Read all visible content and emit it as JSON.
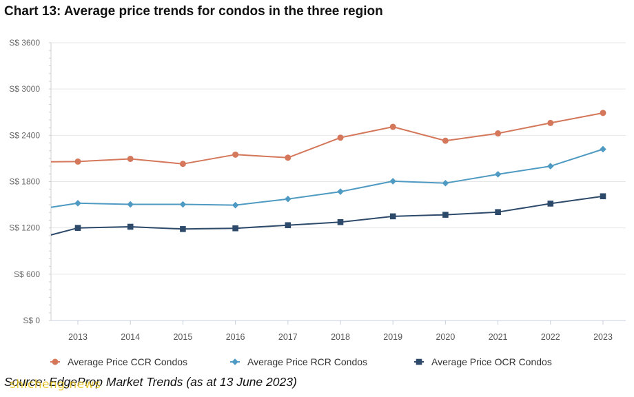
{
  "header": {
    "title": "Chart 13: Average price trends for condos in the three region"
  },
  "footer": {
    "source": "Source: EdgeProp Market Trends (as at 13 June 2023)",
    "watermark": "shicheng.news"
  },
  "chart_data": {
    "type": "line",
    "title": "Chart 13: Average price trends for condos in the three region",
    "xlabel": "",
    "ylabel": "",
    "categories": [
      "2013",
      "2014",
      "2015",
      "2016",
      "2017",
      "2018",
      "2019",
      "2020",
      "2021",
      "2022",
      "2023"
    ],
    "yticks": [
      "S$ 0",
      "S$ 600",
      "S$ 1200",
      "S$ 1800",
      "S$ 2400",
      "S$ 3000",
      "S$ 3600"
    ],
    "ylim": [
      0,
      3600
    ],
    "grid": true,
    "legend_position": "bottom",
    "series": [
      {
        "name": "Average Price CCR Condos",
        "color": "#d4775a",
        "marker": "circle",
        "values": [
          2060,
          2095,
          2030,
          2150,
          2110,
          2370,
          2510,
          2330,
          2425,
          2560,
          2690
        ]
      },
      {
        "name": "Average Price RCR Condos",
        "color": "#4e9ac2",
        "marker": "diamond",
        "values": [
          1520,
          1505,
          1505,
          1495,
          1575,
          1670,
          1805,
          1780,
          1895,
          2000,
          2220
        ]
      },
      {
        "name": "Average Price OCR Condos",
        "color": "#2e4a6b",
        "marker": "square",
        "values": [
          1200,
          1215,
          1185,
          1195,
          1235,
          1275,
          1350,
          1370,
          1405,
          1515,
          1610
        ]
      }
    ]
  }
}
